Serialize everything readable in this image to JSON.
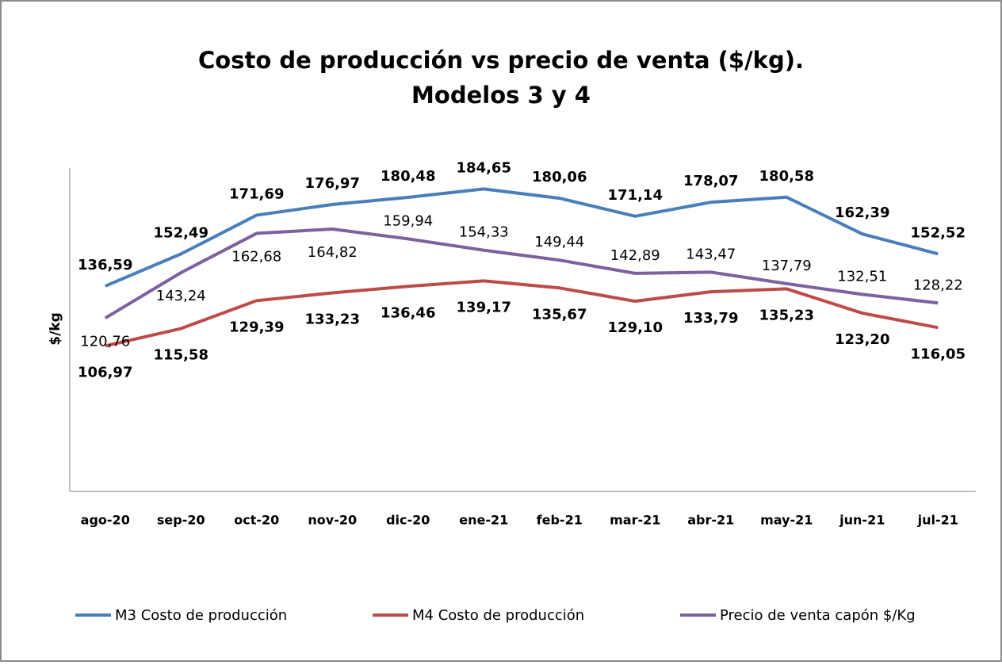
{
  "chart_data": {
    "type": "line",
    "title": "Costo de producción vs precio de venta ($/kg).",
    "subtitle": "Modelos 3 y 4",
    "y_label": "$/kg",
    "categories": [
      "ago-20",
      "sep-20",
      "oct-20",
      "nov-20",
      "dic-20",
      "ene-21",
      "feb-21",
      "mar-21",
      "abr-21",
      "may-21",
      "jun-21",
      "jul-21"
    ],
    "series": [
      {
        "name": "M3 Costo de producción",
        "color": "#4a7ebb",
        "values": [
          136.59,
          152.49,
          171.69,
          176.97,
          180.48,
          184.65,
          180.06,
          171.14,
          178.07,
          180.58,
          162.39,
          152.52
        ],
        "value_labels": [
          "136,59",
          "152,49",
          "171,69",
          "176,97",
          "180,48",
          "184,65",
          "180,06",
          "171,14",
          "178,07",
          "180,58",
          "162,39",
          "152,52"
        ]
      },
      {
        "name": "M4 Costo de producción",
        "color": "#be4b48",
        "values": [
          106.97,
          115.58,
          129.39,
          133.23,
          136.46,
          139.17,
          135.67,
          129.1,
          133.79,
          135.23,
          123.2,
          116.05
        ],
        "value_labels": [
          "106,97",
          "115,58",
          "129,39",
          "133,23",
          "136,46",
          "139,17",
          "135,67",
          "129,10",
          "133,79",
          "135,23",
          "123,20",
          "116,05"
        ]
      },
      {
        "name": "Precio de venta capón $/Kg",
        "color": "#7d60a0",
        "values": [
          120.76,
          143.24,
          162.68,
          164.82,
          159.94,
          154.33,
          149.44,
          142.89,
          143.47,
          137.79,
          132.51,
          128.22
        ],
        "value_labels": [
          "120,76",
          "143,24",
          "162,68",
          "164,82",
          "159,94",
          "154,33",
          "149,44",
          "142,89",
          "143,47",
          "137,79",
          "132,51",
          "128,22"
        ]
      }
    ],
    "ylim": [
      35,
      195
    ],
    "legend": "bottom"
  }
}
